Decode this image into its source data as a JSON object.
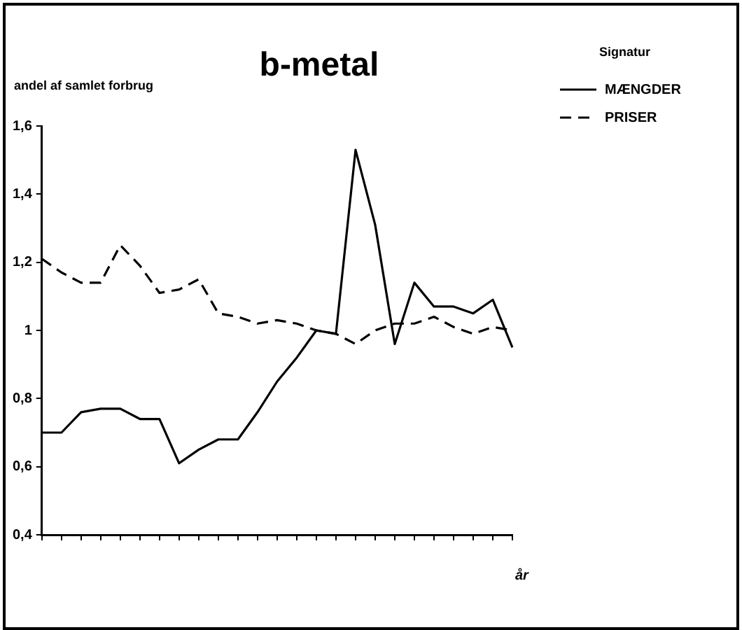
{
  "chart_data": {
    "type": "line",
    "title": "b-metal",
    "ylabel": "andel af samlet forbrug",
    "xlabel": "år",
    "legend_title": "Signatur",
    "categories": [
      null,
      null,
      null,
      null,
      null,
      null,
      null,
      null,
      null,
      null,
      null,
      null,
      null,
      null,
      null,
      null,
      null,
      null,
      null,
      null,
      null,
      null,
      null,
      null,
      null
    ],
    "series": [
      {
        "name": "MÆNGDER",
        "color": "#000000",
        "line_style": "solid",
        "values": [
          0.7,
          0.7,
          0.76,
          0.77,
          0.77,
          0.74,
          0.74,
          0.61,
          0.65,
          0.68,
          0.68,
          0.76,
          0.85,
          0.92,
          1.0,
          0.99,
          1.53,
          1.31,
          0.96,
          1.14,
          1.07,
          1.07,
          1.05,
          1.09,
          0.95
        ]
      },
      {
        "name": "PRISER",
        "color": "#000000",
        "line_style": "dashed",
        "values": [
          1.21,
          1.17,
          1.14,
          1.14,
          1.25,
          1.19,
          1.11,
          1.12,
          1.15,
          1.05,
          1.04,
          1.02,
          1.03,
          1.02,
          1.0,
          0.99,
          0.96,
          1.0,
          1.02,
          1.02,
          1.04,
          1.01,
          0.99,
          1.01,
          1.0
        ]
      }
    ],
    "ylim": [
      0.4,
      1.6
    ],
    "yticks": [
      {
        "value": 0.4,
        "label": "0,4"
      },
      {
        "value": 0.6,
        "label": "0,6"
      },
      {
        "value": 0.8,
        "label": "0,8"
      },
      1,
      {
        "value": 1.2,
        "label": "1,2"
      },
      {
        "value": 1.4,
        "label": "1,4"
      },
      {
        "value": 1.6,
        "label": "1,6"
      }
    ],
    "tick_labels": "y",
    "grid": false,
    "legend": "top right",
    "marker": "none"
  }
}
